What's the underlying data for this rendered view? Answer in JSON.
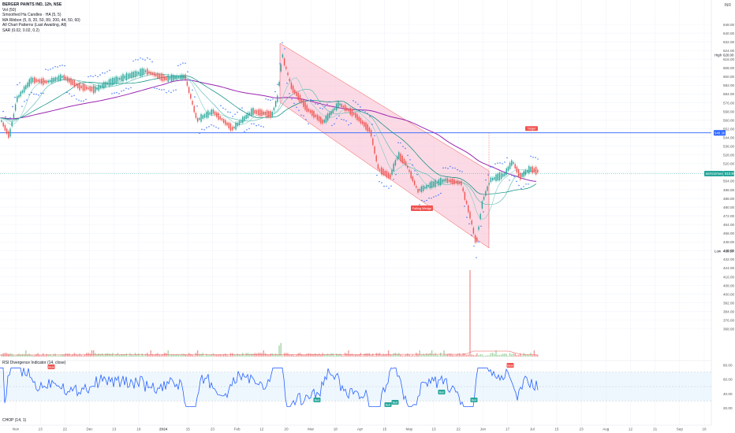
{
  "symbol": {
    "title": "BERGER PAINTS IND, 12h, NSE",
    "currency": "INR"
  },
  "legend": [
    "Vol (50)",
    "Smoothed Ha Candles · HA (5, 5)",
    "MA Ribbon (5, 8, 20, 50, 89, 200, 44, 50, 60)",
    "All Chart Patterns (Last Awaiting, All)",
    "SAR (0.02, 0.02, 0.2)"
  ],
  "rsi_legend": "RSI Divergence Indicator (14, close)",
  "chop_legend": "CHOP (14, 1)",
  "price_axis": {
    "labels": [
      "648.00",
      "640.00",
      "632.00",
      "624.00",
      "616.00",
      "608.00",
      "600.00",
      "592.00",
      "584.00",
      "576.00",
      "568.00",
      "560.00",
      "552.00",
      "544.00",
      "536.00",
      "528.00",
      "520.00",
      "512.00",
      "504.00",
      "496.00",
      "488.00",
      "480.00",
      "472.00",
      "464.00",
      "456.00",
      "448.00",
      "440.00",
      "432.00",
      "424.00",
      "416.00",
      "408.00",
      "400.00",
      "392.00",
      "384.00",
      "376.00",
      "368.00"
    ],
    "high_tag": "High",
    "high_value": "620.00",
    "low_tag": "Low",
    "low_value": "439.50",
    "target_price": "548.30",
    "current_tag": "BERGEPAINT",
    "current_price": "510.80"
  },
  "rsi_axis": {
    "labels": [
      "80.00",
      "60.00",
      "40.00",
      "20.00"
    ]
  },
  "time_axis": [
    "Nov",
    "13",
    "22",
    "Dec",
    "13",
    "19",
    "2024",
    "15",
    "23",
    "Feb",
    "12",
    "20",
    "Mar",
    "18",
    "Apr",
    "15",
    "May",
    "13",
    "22",
    "Jun",
    "17",
    "Jul",
    "15",
    "23",
    "Aug",
    "12",
    "21",
    "Sep",
    "16"
  ],
  "annotations": {
    "target_label": "Target",
    "pattern_label": "Falling Wedge",
    "bull_label": "Bull",
    "bear_label": "Bear"
  },
  "colors": {
    "accent": "#2962ff",
    "bull": "#26a69a",
    "bear": "#ef5350",
    "sar": "#2962ff",
    "ma_slow": "#9c27b0",
    "wedge_fill": "#f8bbd0",
    "rsi_line": "#2962ff",
    "rsi_band": "#e3f2fd"
  }
}
